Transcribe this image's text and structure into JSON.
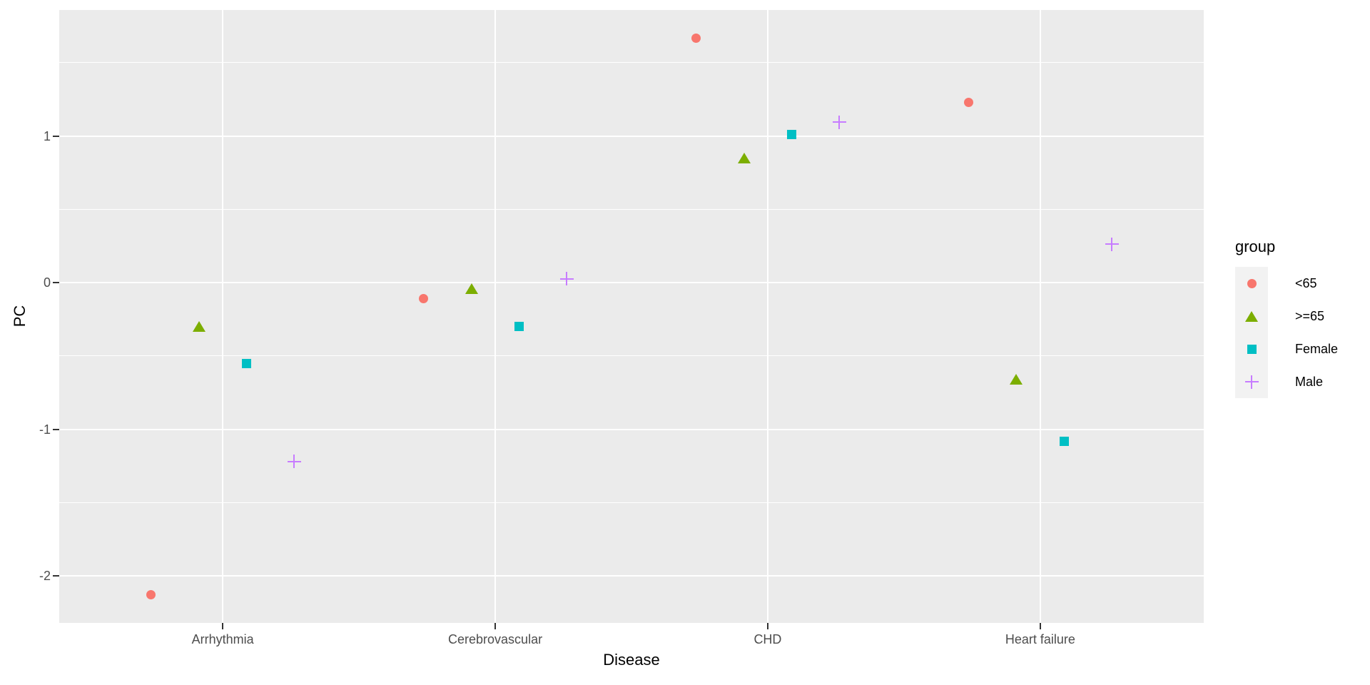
{
  "chart_data": {
    "type": "scatter",
    "categories": [
      "Arrhythmia",
      "Cerebrovascular",
      "CHD",
      "Heart failure"
    ],
    "series": [
      {
        "name": "<65",
        "marker": "circle",
        "color": "#F8766D",
        "values": [
          -2.13,
          -0.11,
          1.67,
          1.23
        ]
      },
      {
        "name": ">=65",
        "marker": "triangle",
        "color": "#7CAE00",
        "values": [
          -0.3,
          -0.04,
          0.85,
          -0.66
        ]
      },
      {
        "name": "Female",
        "marker": "square",
        "color": "#00BFC4",
        "values": [
          -0.55,
          -0.3,
          1.01,
          -1.08
        ]
      },
      {
        "name": "Male",
        "marker": "plus",
        "color": "#C77CFF",
        "values": [
          -1.22,
          0.12,
          1.28,
          0.54
        ]
      }
    ],
    "title": "",
    "xlabel": "Disease",
    "ylabel": "PC",
    "legend_title": "group",
    "legend_position": "right",
    "ylim": [
      -2.32,
      1.86
    ],
    "yticks": [
      -2,
      -1,
      0,
      1
    ],
    "yticks_minor": [
      -1.5,
      -0.5,
      0.5,
      1.5
    ],
    "grid": true,
    "panel_bg": "#EBEBEB",
    "grid_color": "#FFFFFF",
    "tick_label_color": "#4D4D4D",
    "tick_mark_color": "#333333",
    "axis_title_color": "#000000",
    "legend_key_bg": "#F2F2F2"
  }
}
